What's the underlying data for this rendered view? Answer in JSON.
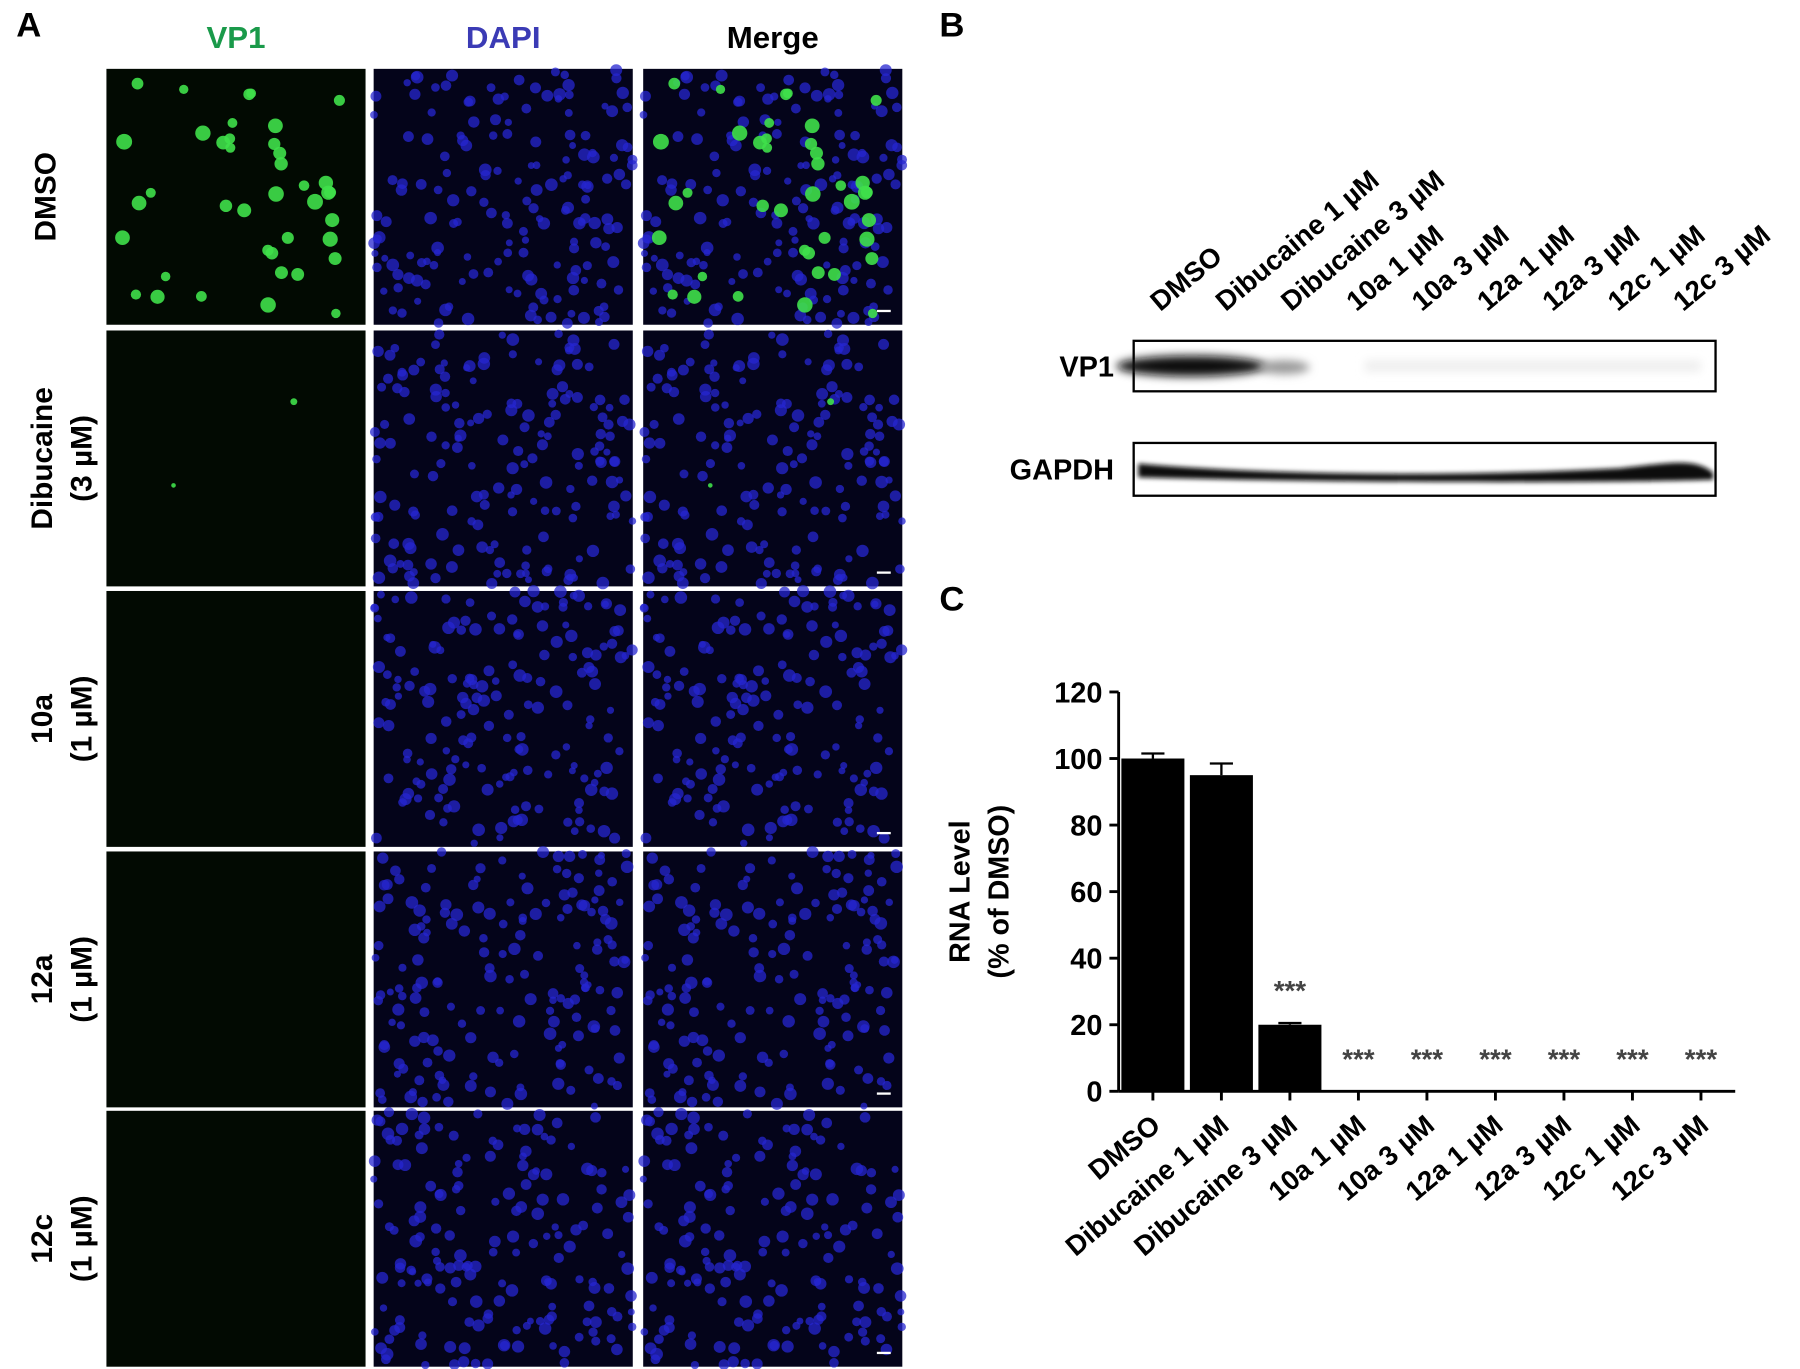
{
  "panel_labels": [
    "A",
    "B",
    "C"
  ],
  "panel_a": {
    "columns": [
      "VP1",
      "DAPI",
      "Merge"
    ],
    "rows": [
      [
        "DMSO"
      ],
      [
        "Dibucaine",
        "(3 µM)"
      ],
      [
        "10a",
        "(1 µM)"
      ],
      [
        "12a",
        "(1 µM)"
      ],
      [
        "12c",
        "(1 µM)"
      ]
    ]
  },
  "panel_b": {
    "lanes": [
      "DMSO",
      "Dibucaine 1 µM",
      "Dibucaine 3 µM",
      "10a 1 µM",
      "10a 3 µM",
      "12a 1 µM",
      "12a 3 µM",
      "12c 1 µM",
      "12c 3 µM"
    ],
    "bands": [
      "VP1",
      "GAPDH"
    ]
  },
  "chart_data": {
    "type": "bar",
    "ylabel": [
      "RNA Level",
      "(% of DMSO)"
    ],
    "categories": [
      "DMSO",
      "Dibucaine 1 µM",
      "Dibucaine 3 µM",
      "10a 1 µM",
      "10a 3 µM",
      "12a 1 µM",
      "12a 3 µM",
      "12c 1 µM",
      "12c 3 µM"
    ],
    "values": [
      100,
      95,
      20,
      0,
      0,
      0,
      0,
      0,
      0
    ],
    "errors": [
      1.5,
      3.5,
      0.5,
      0,
      0,
      0,
      0,
      0,
      0
    ],
    "annotations": [
      null,
      null,
      "***",
      "***",
      "***",
      "***",
      "***",
      "***",
      "***"
    ],
    "color": "#000000",
    "ylim": [
      0,
      120
    ],
    "yticks": [
      0,
      20,
      40,
      60,
      80,
      100,
      120
    ],
    "grid": false
  }
}
